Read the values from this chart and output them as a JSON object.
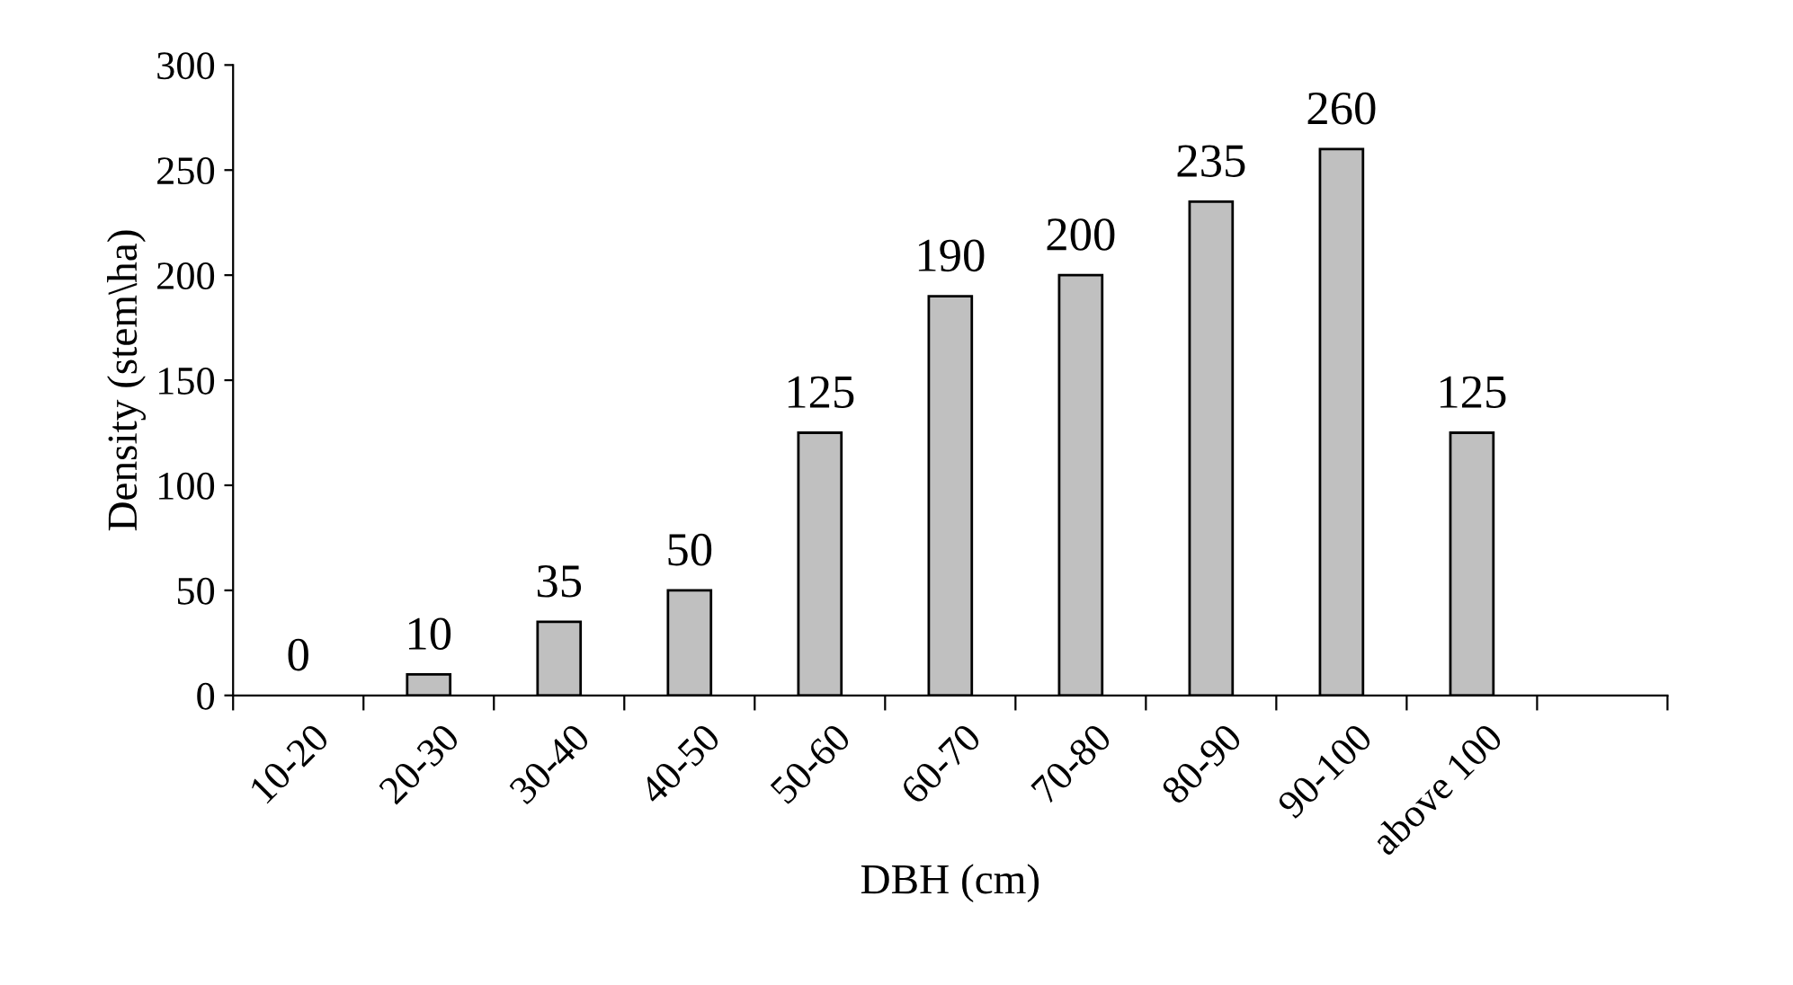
{
  "chart_data": {
    "type": "bar",
    "xlabel": "DBH (cm)",
    "ylabel": "Density (stem\\ha)",
    "categories": [
      "10-20",
      "20-30",
      "30-40",
      "40-50",
      "50-60",
      "60-70",
      "70-80",
      "80-90",
      "90-100",
      "above 100",
      null
    ],
    "values": [
      0,
      10,
      35,
      50,
      125,
      190,
      200,
      235,
      260,
      125,
      null
    ],
    "color": "#c0c0c0",
    "ylim": [
      0,
      300
    ],
    "yticks": [
      0,
      50,
      100,
      150,
      200,
      250,
      300
    ],
    "grid": false,
    "data_labels": true
  }
}
